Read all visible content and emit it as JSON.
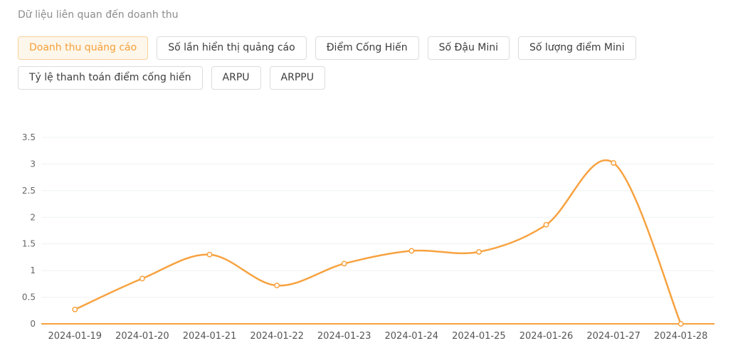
{
  "header": {
    "title": "Dữ liệu liên quan đến doanh thu"
  },
  "tabs": {
    "items": [
      {
        "label": "Doanh thu quảng cáo",
        "active": true
      },
      {
        "label": "Số lần hiển thị quảng cáo",
        "active": false
      },
      {
        "label": "Điểm Cống Hiến",
        "active": false
      },
      {
        "label": "Số Đậu Mini",
        "active": false
      },
      {
        "label": "Số lượng điểm Mini",
        "active": false
      },
      {
        "label": "Tỷ lệ thanh toán điểm cống hiến",
        "active": false
      },
      {
        "label": "ARPU",
        "active": false
      },
      {
        "label": "ARPPU",
        "active": false
      }
    ]
  },
  "colors": {
    "accent": "#f5a03c",
    "line": "#f7a240",
    "axis_line": "#f7a240",
    "grid": "#eff1f3",
    "y_label": "#666666",
    "x_label": "#555555",
    "title": "#8c8c8c"
  },
  "chart_data": {
    "type": "line",
    "smooth": true,
    "series_name": "Doanh thu quảng cáo",
    "categories": [
      "2024-01-19",
      "2024-01-20",
      "2024-01-21",
      "2024-01-22",
      "2024-01-23",
      "2024-01-24",
      "2024-01-25",
      "2024-01-26",
      "2024-01-27",
      "2024-01-28"
    ],
    "values": [
      0.27,
      0.85,
      1.3,
      0.72,
      1.13,
      1.37,
      1.35,
      1.86,
      3.02,
      0
    ],
    "title": "",
    "xlabel": "",
    "ylabel": "",
    "ylim": [
      0,
      3.5
    ],
    "ytick_step": 0.5,
    "yticks": [
      0,
      0.5,
      1,
      1.5,
      2,
      2.5,
      3,
      3.5
    ],
    "grid": true,
    "legend_position": "none",
    "marker": "empty-circle"
  }
}
